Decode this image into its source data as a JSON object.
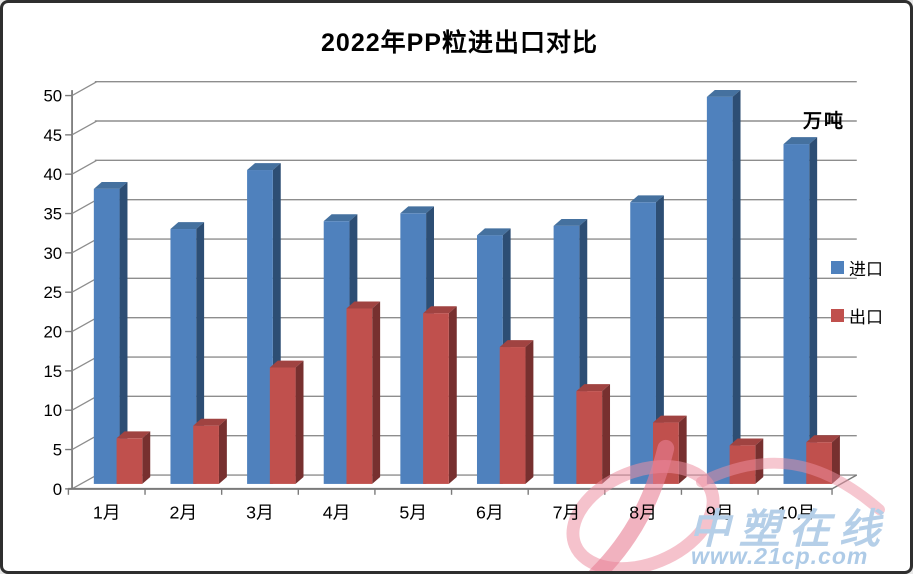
{
  "title": "2022年PP粒进出口对比",
  "unit_label": "万吨",
  "watermark": {
    "name": "中塑在线",
    "url": "www.21cp.com",
    "text_color": "#b5cfe8",
    "logo_color": "#ed8fa2"
  },
  "colors": {
    "grid": "#8d8d8d",
    "axis": "#7a7a7a",
    "text": "#000000",
    "background": "#ffffff"
  },
  "chart_data": {
    "type": "bar",
    "style": "3d-clustered-column",
    "title": "2022年PP粒进出口对比",
    "ylabel": "万吨",
    "xlabel": "",
    "ylim": [
      0,
      50
    ],
    "ytick_step": 5,
    "grid": true,
    "legend_position": "right",
    "categories": [
      "1月",
      "2月",
      "3月",
      "4月",
      "5月",
      "6月",
      "7月",
      "8月",
      "9月",
      "10月"
    ],
    "series": [
      {
        "name": "进口",
        "color": "#4F81BD",
        "color_top": "#45719F",
        "color_side": "#2D4E74",
        "values": [
          37.5,
          32.4,
          39.9,
          33.4,
          34.4,
          31.6,
          32.8,
          35.8,
          49.2,
          43.2
        ]
      },
      {
        "name": "出口",
        "color": "#C0504D",
        "color_top": "#A04341",
        "color_side": "#77302F",
        "values": [
          5.8,
          7.4,
          14.8,
          22.3,
          21.7,
          17.4,
          11.8,
          7.8,
          4.9,
          5.3
        ]
      }
    ]
  }
}
